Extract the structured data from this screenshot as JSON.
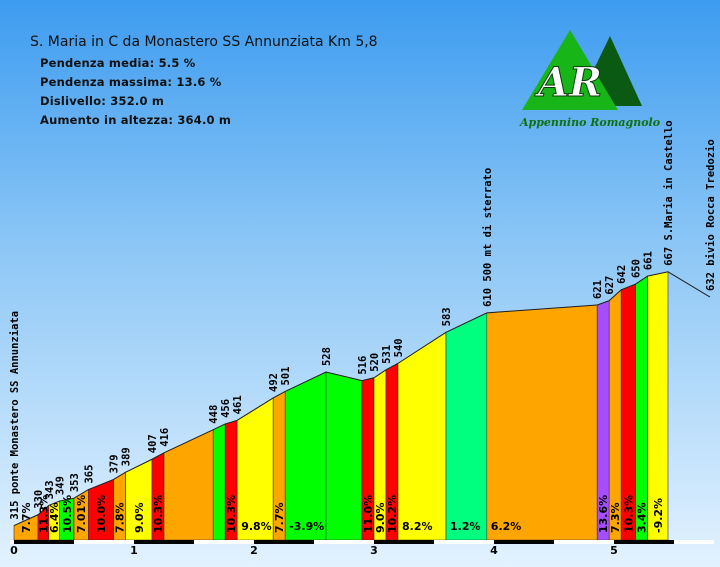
{
  "chart_data": {
    "type": "area",
    "title": "S. Maria in C da Monastero SS Annunziata Km 5,8",
    "stats": {
      "avg_grade": "Pendenza media: 5.5 %",
      "max_grade": "Pendenza massima: 13.6 %",
      "elevation_diff": "Dislivello: 352.0 m",
      "total_ascent": "Aumento in altezza: 364.0 m"
    },
    "x_ticks": [
      "0",
      "1",
      "2",
      "3",
      "4",
      "5"
    ],
    "xlim": [
      0,
      5.8
    ],
    "ylim": [
      295,
      700
    ],
    "points": [
      {
        "km": 0.0,
        "ele": 315,
        "label": "315 ponte Monastero SS Annunziata"
      },
      {
        "km": 0.2,
        "ele": 330,
        "label": "330"
      },
      {
        "km": 0.29,
        "ele": 343,
        "label": "343"
      },
      {
        "km": 0.38,
        "ele": 349,
        "label": "349"
      },
      {
        "km": 0.5,
        "ele": 353,
        "label": "353"
      },
      {
        "km": 0.62,
        "ele": 365,
        "label": "365"
      },
      {
        "km": 0.83,
        "ele": 379,
        "label": "379"
      },
      {
        "km": 0.93,
        "ele": 389,
        "label": "389"
      },
      {
        "km": 1.15,
        "ele": 407,
        "label": "407"
      },
      {
        "km": 1.25,
        "ele": 416,
        "label": "416"
      },
      {
        "km": 1.66,
        "ele": 448,
        "label": "448"
      },
      {
        "km": 1.76,
        "ele": 456,
        "label": "456"
      },
      {
        "km": 1.86,
        "ele": 461,
        "label": "461"
      },
      {
        "km": 2.16,
        "ele": 492,
        "label": "492"
      },
      {
        "km": 2.26,
        "ele": 501,
        "label": "501"
      },
      {
        "km": 2.6,
        "ele": 528,
        "label": "528"
      },
      {
        "km": 2.9,
        "ele": 516,
        "label": "516"
      },
      {
        "km": 3.0,
        "ele": 520,
        "label": "520"
      },
      {
        "km": 3.1,
        "ele": 531,
        "label": "531"
      },
      {
        "km": 3.2,
        "ele": 540,
        "label": "540"
      },
      {
        "km": 3.6,
        "ele": 583,
        "label": "583"
      },
      {
        "km": 3.94,
        "ele": 610,
        "label": "610 500 mt di sterrato"
      },
      {
        "km": 4.86,
        "ele": 621,
        "label": "621"
      },
      {
        "km": 4.96,
        "ele": 627,
        "label": "627"
      },
      {
        "km": 5.06,
        "ele": 642,
        "label": "642"
      },
      {
        "km": 5.18,
        "ele": 650,
        "label": "650"
      },
      {
        "km": 5.28,
        "ele": 661,
        "label": "661"
      },
      {
        "km": 5.45,
        "ele": 667,
        "label": "667 S.Maria in Castello"
      },
      {
        "km": 5.8,
        "ele": 632,
        "label": "632 bivio Rocca Tredozio"
      }
    ],
    "segments": [
      {
        "grade": "7.7%",
        "color": "#ffa500"
      },
      {
        "grade": "11.3%",
        "color": "#ff0000"
      },
      {
        "grade": "6.4%",
        "color": "#ffff00"
      },
      {
        "grade": "10.5%",
        "color": "#00ff00"
      },
      {
        "grade": "7.01%",
        "color": "#ffa500"
      },
      {
        "grade": "10.0%",
        "color": "#ff0000"
      },
      {
        "grade": "7.8%",
        "color": "#ffa500"
      },
      {
        "grade": "9.0%",
        "color": "#ffff00"
      },
      {
        "grade": "10.3%",
        "color": "#ff0000"
      },
      {
        "grade": "",
        "color": "#ffa500"
      },
      {
        "grade": "",
        "color": "#00ff00"
      },
      {
        "grade": "10.3%",
        "color": "#ff0000"
      },
      {
        "grade": "9.8%",
        "color": "#ffff00"
      },
      {
        "grade": "7.7%",
        "color": "#ffa500"
      },
      {
        "grade": "-3.9%",
        "color": "#00ff00"
      },
      {
        "grade": "",
        "color": "#00ff00"
      },
      {
        "grade": "11.0%",
        "color": "#ff0000"
      },
      {
        "grade": "9.0%",
        "color": "#ffff00"
      },
      {
        "grade": "10.2%",
        "color": "#ff0000"
      },
      {
        "grade": "8.2%",
        "color": "#ffff00"
      },
      {
        "grade": "1.2%",
        "color": "#00ff7f"
      },
      {
        "grade": "6.2%",
        "color": "#ffa500"
      },
      {
        "grade": "13.6%",
        "color": "#a64dff"
      },
      {
        "grade": "7.3%",
        "color": "#ffa500"
      },
      {
        "grade": "10.3%",
        "color": "#ff0000"
      },
      {
        "grade": "3.4%",
        "color": "#00ff00"
      },
      {
        "grade": "-9.2%",
        "color": "#ffff00"
      }
    ]
  },
  "logo": {
    "letters": "AR",
    "caption": "Appennino Romagnolo",
    "colors": {
      "main": "#17b517",
      "dark": "#0a5a14"
    }
  }
}
